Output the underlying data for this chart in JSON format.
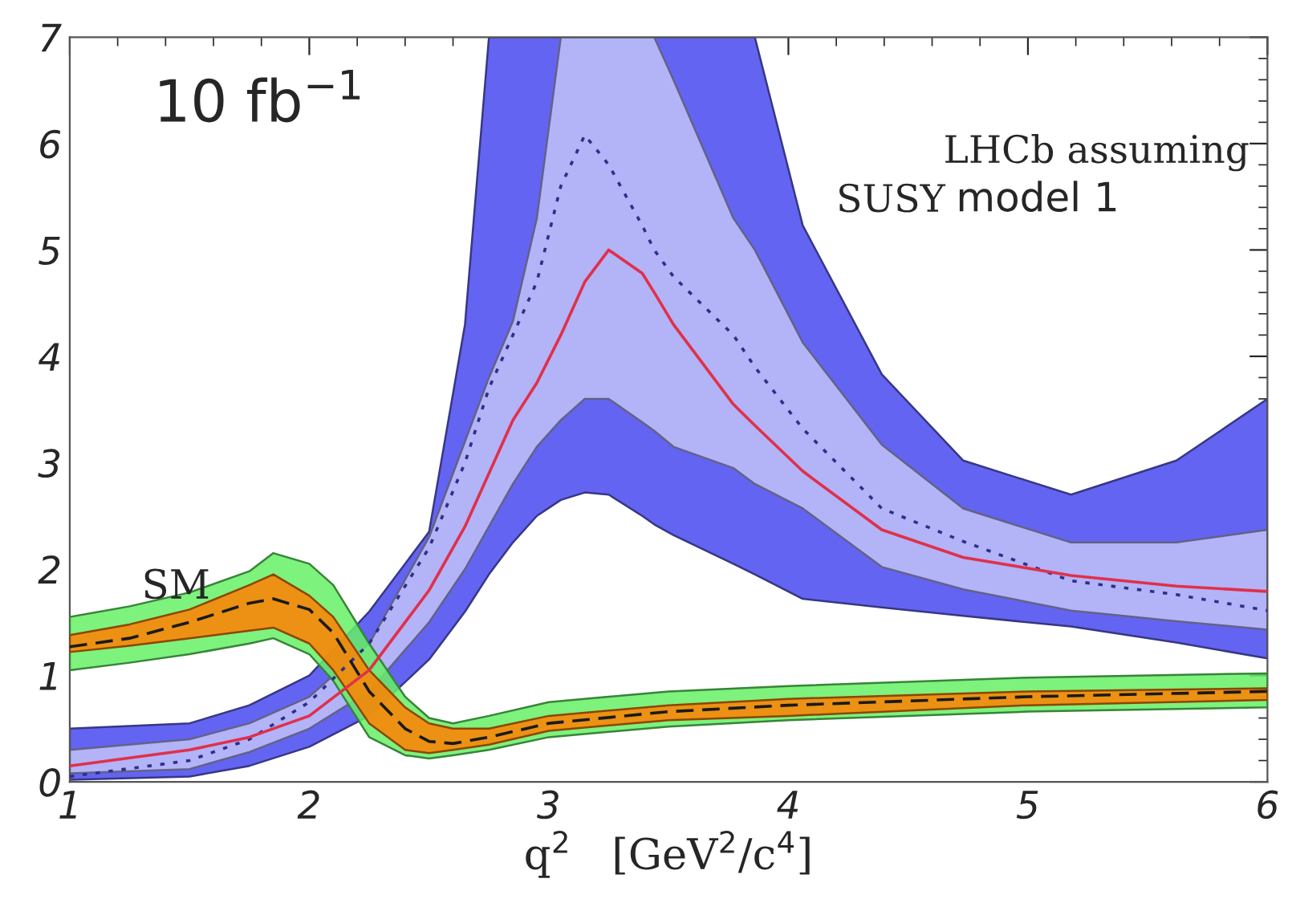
{
  "chart_data": {
    "type": "line",
    "xlabel": "q$^{2}$   [GeV$^{2}$/c$^{4}$]",
    "annotations": [
      "10 fb$^{−1}$",
      "SM",
      "LHCb assuming",
      "SUSY",
      "model 1"
    ],
    "xlim": [
      1,
      6
    ],
    "ylim": [
      0,
      7
    ],
    "xticks": [
      1,
      2,
      3,
      4,
      5,
      6
    ],
    "yticks": [
      0,
      1,
      2,
      3,
      4,
      5,
      6,
      7
    ],
    "grid": false,
    "legend": false,
    "series": [
      {
        "color": "#6464f2",
        "x": [
          1,
          1.5,
          1.75,
          2,
          2.25,
          2.5,
          2.65,
          2.75,
          2.85,
          2.95,
          3.05,
          3.15,
          3.25,
          3.39,
          3.44,
          3.52,
          3.77,
          3.86,
          4.06,
          4.39,
          4.73,
          5.18,
          5.62,
          6
        ],
        "values": [
          null,
          null,
          null,
          null,
          null,
          null,
          null,
          null,
          null,
          null,
          null,
          null,
          null,
          null,
          null,
          null,
          null,
          null,
          null,
          null,
          null,
          null,
          null,
          null
        ],
        "lower": [
          0.02,
          0.05,
          0.15,
          0.33,
          0.62,
          1.15,
          1.6,
          1.95,
          2.25,
          2.5,
          2.65,
          2.72,
          2.7,
          2.5,
          2.42,
          2.32,
          2.05,
          1.95,
          1.72,
          1.64,
          1.56,
          1.46,
          1.31,
          1.16
        ],
        "upper": [
          0.5,
          0.55,
          0.72,
          1.0,
          1.6,
          2.35,
          4.3,
          7.0,
          7.0,
          7.0,
          7.0,
          7.0,
          7.0,
          7.0,
          7.0,
          7.0,
          7.0,
          7.0,
          5.23,
          3.83,
          3.02,
          2.7,
          3.02,
          3.6
        ]
      },
      {
        "color": "#b3b3f7",
        "x": [
          1,
          1.5,
          1.75,
          2,
          2.25,
          2.5,
          2.65,
          2.75,
          2.85,
          2.95,
          3.05,
          3.15,
          3.25,
          3.39,
          3.44,
          3.52,
          3.77,
          3.86,
          4.06,
          4.39,
          4.73,
          5.18,
          5.62,
          6
        ],
        "values": [
          null,
          null,
          null,
          null,
          null,
          null,
          null,
          null,
          null,
          null,
          null,
          null,
          null,
          null,
          null,
          null,
          null,
          null,
          null,
          null,
          null,
          null,
          null,
          null
        ],
        "lower": [
          0.08,
          0.12,
          0.28,
          0.5,
          0.85,
          1.5,
          2.0,
          2.4,
          2.8,
          3.15,
          3.4,
          3.6,
          3.6,
          3.38,
          3.3,
          3.15,
          2.95,
          2.8,
          2.57,
          2.02,
          1.81,
          1.61,
          1.51,
          1.43
        ],
        "upper": [
          0.3,
          0.4,
          0.55,
          0.8,
          1.3,
          2.3,
          3.2,
          3.8,
          4.33,
          5.3,
          7.0,
          7.0,
          7.0,
          7.0,
          7.0,
          6.6,
          5.3,
          5.0,
          4.13,
          3.17,
          2.57,
          2.25,
          2.25,
          2.37
        ]
      },
      {
        "color": "#2e2e8a",
        "line_style": "dotted",
        "x": [
          1,
          1.5,
          1.75,
          2,
          2.25,
          2.5,
          2.65,
          2.75,
          2.85,
          2.95,
          3.05,
          3.15,
          3.25,
          3.39,
          3.44,
          3.52,
          3.77,
          3.86,
          4.06,
          4.39,
          4.73,
          5.18,
          5.62,
          6
        ],
        "values": [
          0.05,
          0.2,
          0.4,
          0.75,
          1.3,
          2.2,
          3.0,
          3.7,
          4.2,
          4.7,
          5.6,
          6.08,
          5.8,
          5.23,
          5.0,
          4.75,
          4.2,
          3.9,
          3.32,
          2.57,
          2.26,
          1.89,
          1.76,
          1.61
        ]
      },
      {
        "color": "#e0304a",
        "line_style": "solid",
        "x": [
          1,
          1.5,
          1.75,
          2,
          2.25,
          2.5,
          2.65,
          2.75,
          2.85,
          2.95,
          3.05,
          3.15,
          3.25,
          3.39,
          3.44,
          3.52,
          3.77,
          3.86,
          4.06,
          4.39,
          4.73,
          5.18,
          5.62,
          6
        ],
        "values": [
          0.15,
          0.3,
          0.42,
          0.62,
          1.05,
          1.8,
          2.4,
          2.9,
          3.4,
          3.75,
          4.2,
          4.7,
          5.0,
          4.78,
          4.6,
          4.3,
          3.55,
          3.35,
          2.92,
          2.37,
          2.11,
          1.94,
          1.84,
          1.79
        ]
      },
      {
        "color": "#66f066",
        "x": [
          1,
          1.25,
          1.5,
          1.75,
          1.85,
          2,
          2.1,
          2.25,
          2.4,
          2.5,
          2.6,
          2.75,
          3,
          3.5,
          4,
          5,
          6
        ],
        "values": [
          null,
          null,
          null,
          null,
          null,
          null,
          null,
          null,
          null,
          null,
          null,
          null,
          null,
          null,
          null,
          null,
          null
        ],
        "lower": [
          1.05,
          1.12,
          1.2,
          1.3,
          1.35,
          1.2,
          0.95,
          0.42,
          0.25,
          0.22,
          0.25,
          0.3,
          0.42,
          0.52,
          0.58,
          0.66,
          0.7
        ],
        "upper": [
          1.55,
          1.65,
          1.78,
          1.98,
          2.15,
          2.05,
          1.85,
          1.3,
          0.8,
          0.6,
          0.55,
          0.62,
          0.75,
          0.85,
          0.9,
          0.98,
          1.02
        ]
      },
      {
        "color": "#ff8000",
        "x": [
          1,
          1.25,
          1.5,
          1.75,
          1.85,
          2,
          2.1,
          2.25,
          2.4,
          2.5,
          2.6,
          2.75,
          3,
          3.5,
          4,
          5,
          6
        ],
        "values": [
          null,
          null,
          null,
          null,
          null,
          null,
          null,
          null,
          null,
          null,
          null,
          null,
          null,
          null,
          null,
          null,
          null
        ],
        "lower": [
          1.22,
          1.28,
          1.35,
          1.42,
          1.45,
          1.3,
          1.05,
          0.55,
          0.3,
          0.27,
          0.3,
          0.35,
          0.48,
          0.58,
          0.62,
          0.72,
          0.77
        ],
        "upper": [
          1.38,
          1.48,
          1.62,
          1.85,
          1.95,
          1.75,
          1.55,
          1.05,
          0.7,
          0.55,
          0.5,
          0.5,
          0.62,
          0.72,
          0.78,
          0.85,
          0.88
        ]
      },
      {
        "color": "#1a1a1a",
        "line_style": "dashed",
        "x": [
          1,
          1.25,
          1.5,
          1.75,
          1.85,
          2,
          2.1,
          2.25,
          2.4,
          2.5,
          2.6,
          2.75,
          3,
          3.5,
          4,
          5,
          6
        ],
        "values": [
          1.27,
          1.35,
          1.5,
          1.68,
          1.72,
          1.62,
          1.4,
          0.85,
          0.5,
          0.38,
          0.36,
          0.42,
          0.55,
          0.66,
          0.72,
          0.8,
          0.85
        ]
      }
    ]
  }
}
